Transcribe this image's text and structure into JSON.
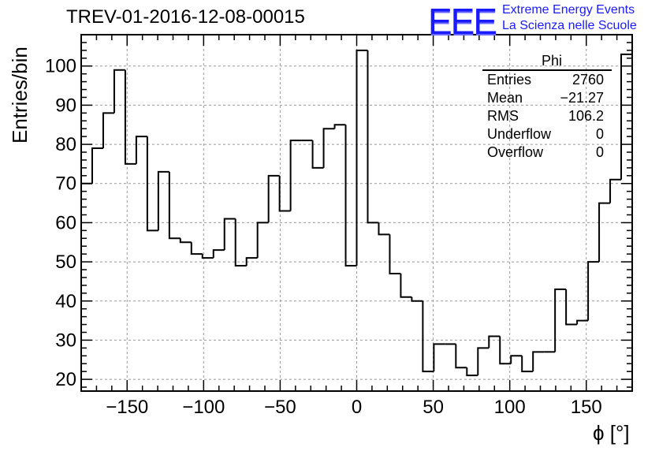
{
  "header": {
    "title": "TREV-01-2016-12-08-00015",
    "logo_text": "EEE",
    "brand_line1": "Extreme Energy Events",
    "brand_line2": "La Scienza nelle Scuole"
  },
  "stats_box": {
    "name": "Phi",
    "rows": [
      {
        "label": "Entries",
        "value": "2760"
      },
      {
        "label": "Mean",
        "value": "−21.27"
      },
      {
        "label": "RMS",
        "value": "106.2"
      },
      {
        "label": "Underflow",
        "value": "0"
      },
      {
        "label": "Overflow",
        "value": "0"
      }
    ]
  },
  "colors": {
    "brand": "#1a1aff",
    "line": "#000000",
    "grid": "#999999"
  },
  "chart_data": {
    "type": "bar",
    "title": "TREV-01-2016-12-08-00015",
    "xlabel": "ϕ [°]",
    "ylabel": "Entries/bin",
    "xlim": [
      -180,
      180
    ],
    "ylim": [
      17,
      108
    ],
    "grid": true,
    "bin_width": 7.2,
    "x_ticks": [
      -150,
      -100,
      -50,
      0,
      50,
      100,
      150
    ],
    "x_tick_labels": [
      "−150",
      "−100",
      "−50",
      "0",
      "50",
      "100",
      "150"
    ],
    "y_ticks": [
      20,
      30,
      40,
      50,
      60,
      70,
      80,
      90,
      100
    ],
    "y_tick_labels": [
      "20",
      "30",
      "40",
      "50",
      "60",
      "70",
      "80",
      "90",
      "100"
    ],
    "values": [
      70,
      79,
      88,
      99,
      75,
      82,
      58,
      73,
      56,
      55,
      52,
      51,
      53,
      61,
      49,
      51,
      60,
      72,
      63,
      81,
      81,
      74,
      84,
      85,
      49,
      104,
      60,
      57,
      47,
      41,
      40,
      22,
      29,
      29,
      23,
      21,
      28,
      31,
      24,
      26,
      22,
      27,
      27,
      43,
      34,
      35,
      50,
      65,
      71,
      103
    ]
  }
}
